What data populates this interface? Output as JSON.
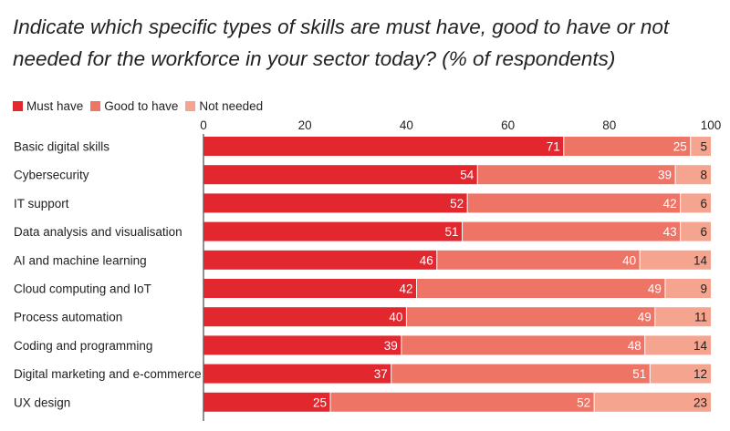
{
  "title": "Indicate which specific types of skills are must have, good to have or not needed for the workforce in your sector today? (% of respondents)",
  "colors": {
    "must_have": "#e2272f",
    "good_to_have": "#ee7466",
    "not_needed": "#f4a48f",
    "label_light": "#ffffff",
    "label_dark": "#222222"
  },
  "chart_data": {
    "type": "bar",
    "orientation": "horizontal",
    "stacked": true,
    "title": "Indicate which specific types of skills are must have, good to have or not needed for the workforce in your sector today? (% of respondents)",
    "xlim": [
      0,
      100
    ],
    "xticks": [
      "0",
      "20",
      "40",
      "60",
      "80",
      "100"
    ],
    "legend_position": "top-left",
    "categories": [
      "Basic digital skills",
      "Cybersecurity",
      "IT support",
      "Data analysis and visualisation",
      "AI and machine learning",
      "Cloud computing and IoT",
      "Process automation",
      "Coding and programming",
      "Digital marketing and e-commerce",
      "UX design"
    ],
    "series": [
      {
        "name": "Must have",
        "values": [
          71,
          54,
          52,
          51,
          46,
          42,
          40,
          39,
          37,
          25
        ]
      },
      {
        "name": "Good to have",
        "values": [
          25,
          39,
          42,
          43,
          40,
          49,
          49,
          48,
          51,
          52
        ]
      },
      {
        "name": "Not needed",
        "values": [
          5,
          8,
          6,
          6,
          14,
          9,
          11,
          14,
          12,
          23
        ]
      }
    ]
  }
}
